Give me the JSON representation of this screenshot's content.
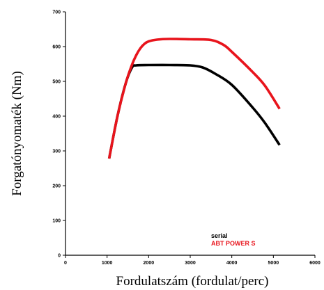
{
  "chart_data": {
    "type": "line",
    "xlabel": "Fordulatszám (fordulat/perc)",
    "ylabel": "Forgatónyomaték (Nm)",
    "xlim": [
      0,
      6000
    ],
    "ylim": [
      0,
      700
    ],
    "x_ticks": [
      "0",
      "1000",
      "2000",
      "3000",
      "4000",
      "5000",
      "6000"
    ],
    "y_ticks": [
      "0",
      "100",
      "200",
      "300",
      "400",
      "500",
      "600",
      "700"
    ],
    "grid": false,
    "legend": "bottom-right",
    "series": [
      {
        "name": "serial",
        "color": "#000000",
        "x": [
          1050,
          1250,
          1450,
          1600,
          1700,
          2000,
          2500,
          3000,
          3300,
          3600,
          4000,
          4500,
          4800,
          5150
        ],
        "y": [
          278,
          400,
          495,
          540,
          546,
          547,
          547,
          546,
          540,
          522,
          490,
          425,
          380,
          317
        ]
      },
      {
        "name": "ABT POWER S",
        "color": "#e8141c",
        "x": [
          1050,
          1250,
          1450,
          1600,
          1700,
          1800,
          1900,
          2000,
          2200,
          2500,
          3000,
          3500,
          3800,
          4000,
          4500,
          4800,
          5150
        ],
        "y": [
          278,
          400,
          495,
          548,
          575,
          595,
          608,
          615,
          620,
          622,
          621,
          619,
          605,
          585,
          527,
          487,
          421
        ]
      }
    ]
  }
}
